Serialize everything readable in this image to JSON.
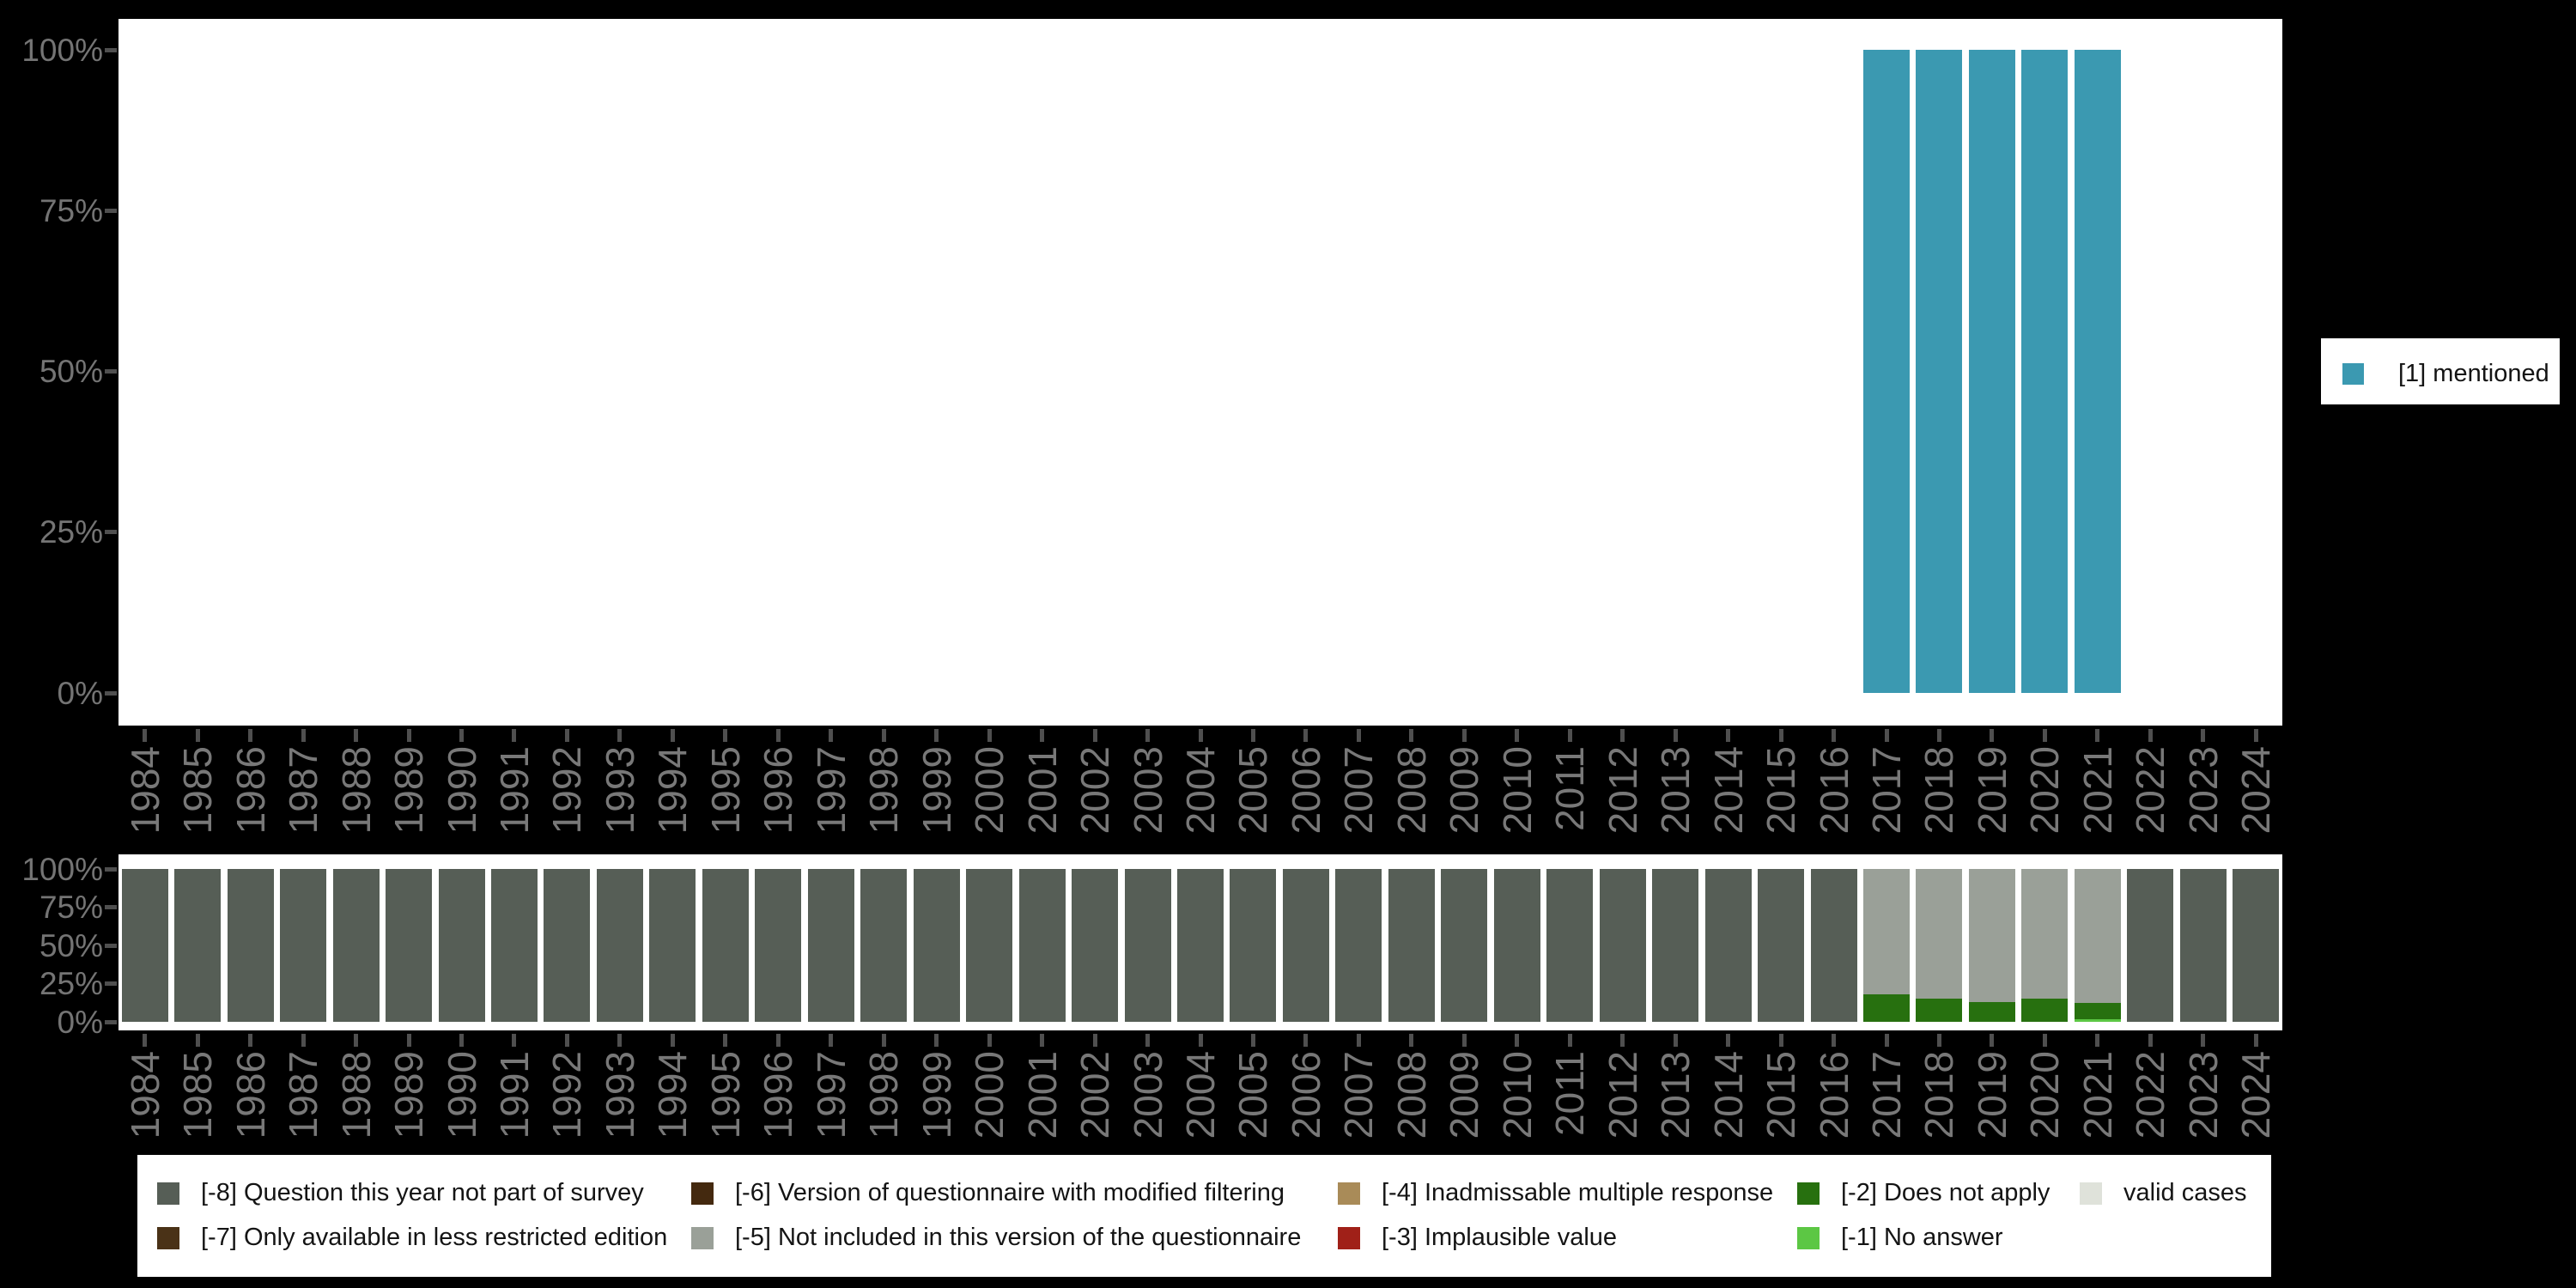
{
  "colors": {
    "background": "#000000",
    "plot_bg": "#ffffff",
    "axis_text": "#747474",
    "tick": "#4f4f4f",
    "legend_text": "#141414",
    "mentioned": "#3b99b1",
    "m8": "#565e56",
    "m7": "#4a3217",
    "m6": "#44290f",
    "m5": "#9aa098",
    "m4": "#a98b58",
    "m3": "#a02018",
    "m2": "#27700f",
    "m1": "#5cc744",
    "valid": "#dfe2da"
  },
  "y_axis_tick_labels": [
    "100%",
    "75%",
    "50%",
    "25%",
    "0%"
  ],
  "chart_data": [
    {
      "type": "bar",
      "stacked": true,
      "title": "",
      "xlabel": "",
      "ylabel": "",
      "ylim": [
        0,
        100
      ],
      "grid": false,
      "legend_position": "right",
      "ytick_labels": [
        "100%",
        "75%",
        "50%",
        "25%",
        "0%"
      ],
      "categories": [
        1984,
        1985,
        1986,
        1987,
        1988,
        1989,
        1990,
        1991,
        1992,
        1993,
        1994,
        1995,
        1996,
        1997,
        1998,
        1999,
        2000,
        2001,
        2002,
        2003,
        2004,
        2005,
        2006,
        2007,
        2008,
        2009,
        2010,
        2011,
        2012,
        2013,
        2014,
        2015,
        2016,
        2017,
        2018,
        2019,
        2020,
        2021,
        2022,
        2023,
        2024
      ],
      "series": [
        {
          "name": "[1] mentioned",
          "color_key": "mentioned",
          "values": [
            0,
            0,
            0,
            0,
            0,
            0,
            0,
            0,
            0,
            0,
            0,
            0,
            0,
            0,
            0,
            0,
            0,
            0,
            0,
            0,
            0,
            0,
            0,
            0,
            0,
            0,
            0,
            0,
            0,
            0,
            0,
            0,
            0,
            100,
            100,
            100,
            100,
            100,
            0,
            0,
            0
          ]
        }
      ]
    },
    {
      "type": "bar",
      "stacked": true,
      "title": "",
      "xlabel": "",
      "ylabel": "",
      "ylim": [
        0,
        100
      ],
      "grid": false,
      "legend_position": "bottom",
      "ytick_labels": [
        "100%",
        "75%",
        "50%",
        "25%",
        "0%"
      ],
      "categories": [
        1984,
        1985,
        1986,
        1987,
        1988,
        1989,
        1990,
        1991,
        1992,
        1993,
        1994,
        1995,
        1996,
        1997,
        1998,
        1999,
        2000,
        2001,
        2002,
        2003,
        2004,
        2005,
        2006,
        2007,
        2008,
        2009,
        2010,
        2011,
        2012,
        2013,
        2014,
        2015,
        2016,
        2017,
        2018,
        2019,
        2020,
        2021,
        2022,
        2023,
        2024
      ],
      "series": [
        {
          "name": "[-8] Question this year not part of survey",
          "color_key": "m8",
          "values": [
            100,
            100,
            100,
            100,
            100,
            100,
            100,
            100,
            100,
            100,
            100,
            100,
            100,
            100,
            100,
            100,
            100,
            100,
            100,
            100,
            100,
            100,
            100,
            100,
            100,
            100,
            100,
            100,
            100,
            100,
            100,
            100,
            100,
            0,
            0,
            0,
            0,
            0,
            100,
            100,
            100
          ]
        },
        {
          "name": "[-5] Not included in this version of the questionnaire",
          "color_key": "m5",
          "values": [
            0,
            0,
            0,
            0,
            0,
            0,
            0,
            0,
            0,
            0,
            0,
            0,
            0,
            0,
            0,
            0,
            0,
            0,
            0,
            0,
            0,
            0,
            0,
            0,
            0,
            0,
            0,
            0,
            0,
            0,
            0,
            0,
            0,
            82,
            85,
            87,
            85,
            87.5,
            0,
            0,
            0
          ]
        },
        {
          "name": "[-2] Does not apply",
          "color_key": "m2",
          "values": [
            0,
            0,
            0,
            0,
            0,
            0,
            0,
            0,
            0,
            0,
            0,
            0,
            0,
            0,
            0,
            0,
            0,
            0,
            0,
            0,
            0,
            0,
            0,
            0,
            0,
            0,
            0,
            0,
            0,
            0,
            0,
            0,
            0,
            18,
            15,
            13,
            15,
            11,
            0,
            0,
            0
          ]
        },
        {
          "name": "[-1] No answer",
          "color_key": "m1",
          "values": [
            0,
            0,
            0,
            0,
            0,
            0,
            0,
            0,
            0,
            0,
            0,
            0,
            0,
            0,
            0,
            0,
            0,
            0,
            0,
            0,
            0,
            0,
            0,
            0,
            0,
            0,
            0,
            0,
            0,
            0,
            0,
            0,
            0,
            0,
            0,
            0,
            0,
            1.5,
            0,
            0,
            0
          ]
        }
      ]
    }
  ],
  "legend_right": {
    "items": [
      {
        "label": "[1] mentioned",
        "color_key": "mentioned"
      }
    ]
  },
  "legend_bottom": {
    "items": [
      {
        "col": 0,
        "row": 0,
        "label": "[-8] Question this year not part of survey",
        "color_key": "m8"
      },
      {
        "col": 0,
        "row": 1,
        "label": "[-7] Only available in less restricted edition",
        "color_key": "m7"
      },
      {
        "col": 1,
        "row": 0,
        "label": "[-6] Version of questionnaire with modified filtering",
        "color_key": "m6"
      },
      {
        "col": 1,
        "row": 1,
        "label": "[-5] Not included in this version of the questionnaire",
        "color_key": "m5"
      },
      {
        "col": 2,
        "row": 0,
        "label": "[-4] Inadmissable multiple response",
        "color_key": "m4"
      },
      {
        "col": 2,
        "row": 1,
        "label": "[-3] Implausible value",
        "color_key": "m3"
      },
      {
        "col": 3,
        "row": 0,
        "label": "[-2] Does not apply",
        "color_key": "m2"
      },
      {
        "col": 3,
        "row": 1,
        "label": "[-1] No answer",
        "color_key": "m1"
      },
      {
        "col": 4,
        "row": 0,
        "label": "valid cases",
        "color_key": "valid"
      }
    ]
  }
}
